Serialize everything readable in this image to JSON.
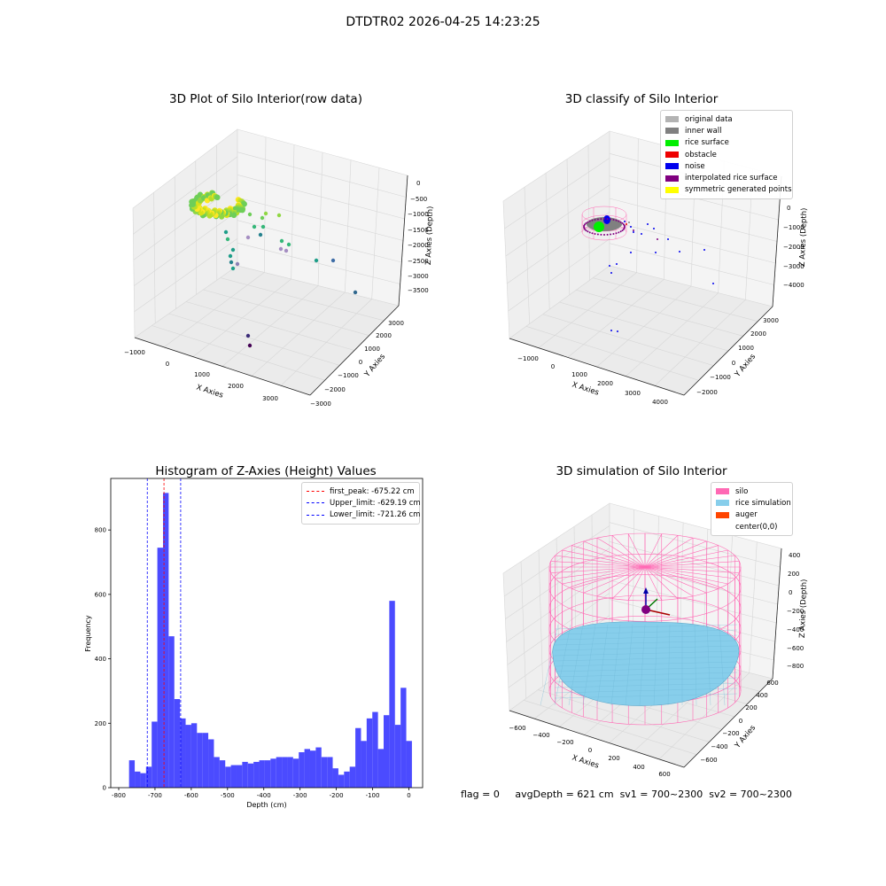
{
  "figure_title": "DTDTR02 2026-04-25 14:23:25",
  "footer": {
    "flag": "flag = 0",
    "avg_depth": "avgDepth = 621 cm",
    "sv1": "sv1 = 700~2300",
    "sv2": "sv2 = 700~2300"
  },
  "chart_data": [
    {
      "type": "scatter",
      "title": "3D Plot of Silo Interior(row data)",
      "xlabel": "X Axies",
      "ylabel": "Y Axies",
      "zlabel": "Z Axies (Depth)",
      "x_ticks": [
        "−1000",
        "0",
        "1000",
        "2000",
        "3000"
      ],
      "y_ticks": [
        "−3000",
        "−2000",
        "−1000",
        "0",
        "1000",
        "2000",
        "3000"
      ],
      "z_ticks": [
        "0",
        "−500",
        "−1000",
        "−1500",
        "−2000",
        "−2500",
        "−3000",
        "−3500"
      ],
      "colormap": "viridis",
      "cluster": "dense yellow-green ring of points near depth −500 to −1000"
    },
    {
      "type": "scatter",
      "title": "3D classify of Silo Interior",
      "xlabel": "X Axies",
      "ylabel": "Y Axies",
      "zlabel": "Z Axies (Depth)",
      "x_ticks": [
        "−1000",
        "0",
        "1000",
        "2000",
        "3000",
        "4000"
      ],
      "y_ticks": [
        "−2000",
        "−1000",
        "0",
        "1000",
        "2000",
        "3000"
      ],
      "z_ticks": [
        "0",
        "−1000",
        "−2000",
        "−3000",
        "−4000"
      ],
      "legend": [
        {
          "label": "original data",
          "color": "#b3b3b3"
        },
        {
          "label": "inner wall",
          "color": "#808080"
        },
        {
          "label": "rice surface",
          "color": "#00ee00"
        },
        {
          "label": "obstacle",
          "color": "#ee0000"
        },
        {
          "label": "noise",
          "color": "#0000ee"
        },
        {
          "label": "interpolated rice surface",
          "color": "#800080"
        },
        {
          "label": "symmetric generated points",
          "color": "#ffff00"
        }
      ]
    },
    {
      "type": "bar",
      "title": "Histogram of Z-Axies (Height) Values",
      "xlabel": "Depth (cm)",
      "ylabel": "Frequency",
      "bar_color": "#4b4bff",
      "bin_width": 15.6,
      "bin_start": -771.5,
      "values": [
        85,
        50,
        45,
        65,
        205,
        745,
        915,
        470,
        275,
        215,
        195,
        200,
        170,
        170,
        150,
        95,
        85,
        65,
        70,
        70,
        80,
        75,
        80,
        85,
        85,
        90,
        95,
        95,
        95,
        90,
        110,
        120,
        115,
        125,
        95,
        95,
        60,
        40,
        50,
        65,
        185,
        145,
        215,
        235,
        120,
        225,
        580,
        195,
        310,
        145
      ],
      "xlim": [
        -822,
        38
      ],
      "ylim": [
        0,
        960
      ],
      "x_ticks": [
        -800,
        -700,
        -600,
        -500,
        -400,
        -300,
        -200,
        -100,
        0
      ],
      "y_ticks": [
        0,
        200,
        400,
        600,
        800
      ],
      "vlines": [
        {
          "label": "first_peak: -675.22 cm",
          "x": -675.22,
          "color": "#ff0000"
        },
        {
          "label": "Upper_limit: -629.19 cm",
          "x": -629.19,
          "color": "#0000ff"
        },
        {
          "label": "Lower_limit: -721.26 cm",
          "x": -721.26,
          "color": "#0000ff"
        }
      ],
      "legend_position": "top-right"
    },
    {
      "type": "scatter",
      "title": "3D simulation of Silo Interior",
      "xlabel": "X Axies",
      "ylabel": "Y Axies",
      "zlabel": "Z Axies (Depth)",
      "x_ticks": [
        "−600",
        "−400",
        "−200",
        "0",
        "200",
        "400",
        "600"
      ],
      "y_ticks": [
        "−600",
        "−400",
        "−200",
        "0",
        "200",
        "400",
        "600"
      ],
      "z_ticks": [
        "400",
        "200",
        "0",
        "−200",
        "−400",
        "−600",
        "−800"
      ],
      "legend": [
        {
          "label": "silo",
          "color": "#ff69b4"
        },
        {
          "label": "rice simulation",
          "color": "#87ceeb"
        },
        {
          "label": "auger",
          "color": "#ff4500"
        },
        {
          "label": "center(0,0)",
          "color": "#ffffff"
        }
      ]
    }
  ]
}
